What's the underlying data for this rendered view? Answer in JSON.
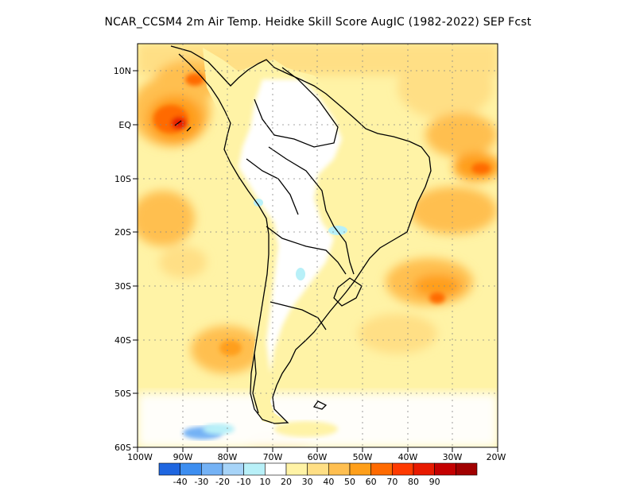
{
  "title": "NCAR_CCSM4  2m Air Temp. Heidke Skill Score AugIC (1982-2022) SEP Fcst",
  "map": {
    "lat_labels": [
      "10N",
      "EQ",
      "10S",
      "20S",
      "30S",
      "40S",
      "50S",
      "60S"
    ],
    "lon_labels": [
      "100W",
      "90W",
      "80W",
      "70W",
      "60W",
      "50W",
      "40W",
      "30W",
      "20W"
    ],
    "extent": {
      "lon_min": -100,
      "lon_max": -20,
      "lat_min": -60,
      "lat_max": 15
    },
    "gridlines": "dotted",
    "coastline_color": "#000000"
  },
  "colorbar": {
    "labels": [
      "-40",
      "-30",
      "-20",
      "-10",
      "10",
      "20",
      "30",
      "40",
      "50",
      "60",
      "70",
      "80",
      "90"
    ],
    "colors": [
      "#1f66e0",
      "#3d8ef0",
      "#74b2f5",
      "#a7d4f8",
      "#b8f0f8",
      "#ffffff",
      "#fff3a6",
      "#ffdf85",
      "#ffbf50",
      "#ff9f1a",
      "#ff6a00",
      "#ff3a00",
      "#e81a00",
      "#c40000",
      "#a10000"
    ]
  }
}
